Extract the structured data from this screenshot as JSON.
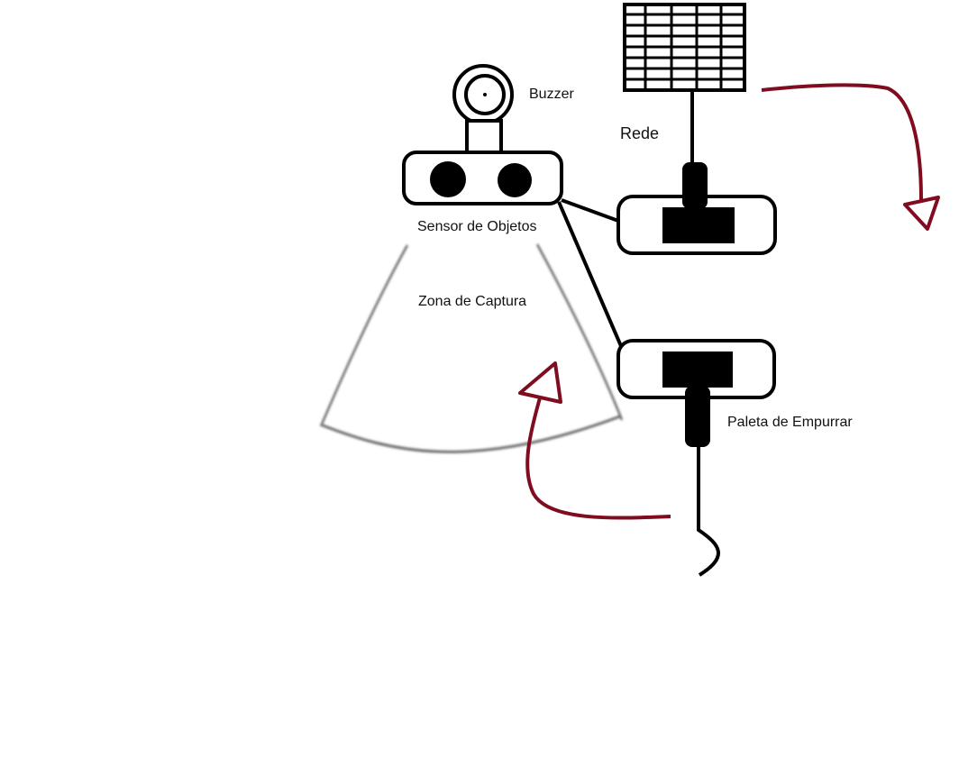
{
  "labels": {
    "buzzer": "Buzzer",
    "rede": "Rede",
    "sensor": "Sensor de Objetos",
    "zona": "Zona de Captura",
    "paleta": "Paleta de Empurrar"
  },
  "colors": {
    "stroke": "#000000",
    "arrow": "#7f0d1f",
    "cone": "#777777",
    "background": "#ffffff"
  }
}
